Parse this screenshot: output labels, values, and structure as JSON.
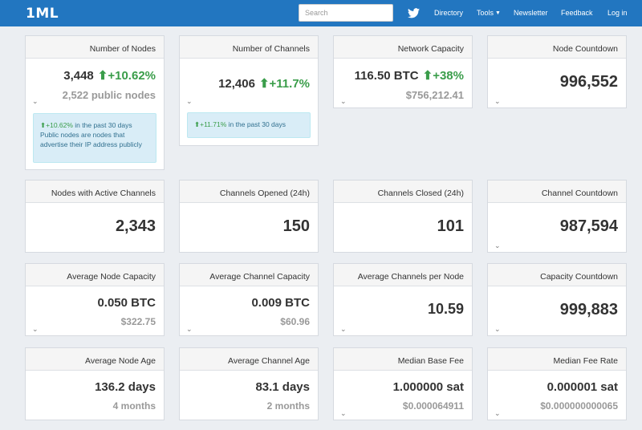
{
  "nav": {
    "logo": "1ML",
    "search_placeholder": "Search",
    "links": {
      "directory": "Directory",
      "tools": "Tools",
      "newsletter": "Newsletter",
      "feedback": "Feedback",
      "login": "Log in"
    }
  },
  "cards": {
    "nodes": {
      "title": "Number of Nodes",
      "value": "3,448",
      "change": "+10.62%",
      "sub": "2,522 public nodes",
      "info_pct": "+10.62%",
      "info_line1": " in the past 30 days",
      "info_line2": "Public nodes are nodes that",
      "info_line3": "advertise their IP address publicly"
    },
    "channels": {
      "title": "Number of Channels",
      "value": "12,406",
      "change": "+11.7%",
      "info_pct": "+11.71%",
      "info_line1": " in the past 30 days"
    },
    "capacity": {
      "title": "Network Capacity",
      "value": "116.50 BTC",
      "change": "+38%",
      "sub": "$756,212.41"
    },
    "node_countdown": {
      "title": "Node Countdown",
      "value": "996,552"
    },
    "active": {
      "title": "Nodes with Active Channels",
      "value": "2,343"
    },
    "opened": {
      "title": "Channels Opened (24h)",
      "value": "150"
    },
    "closed": {
      "title": "Channels Closed (24h)",
      "value": "101"
    },
    "channel_countdown": {
      "title": "Channel Countdown",
      "value": "987,594"
    },
    "avg_node_cap": {
      "title": "Average Node Capacity",
      "value": "0.050 BTC",
      "sub": "$322.75"
    },
    "avg_chan_cap": {
      "title": "Average Channel Capacity",
      "value": "0.009 BTC",
      "sub": "$60.96"
    },
    "avg_chan_per_node": {
      "title": "Average Channels per Node",
      "value": "10.59"
    },
    "capacity_countdown": {
      "title": "Capacity Countdown",
      "value": "999,883"
    },
    "avg_node_age": {
      "title": "Average Node Age",
      "value": "136.2 days",
      "sub": "4 months"
    },
    "avg_chan_age": {
      "title": "Average Channel Age",
      "value": "83.1 days",
      "sub": "2 months"
    },
    "median_base_fee": {
      "title": "Median Base Fee",
      "value": "1.000000 sat",
      "sub": "$0.000064911"
    },
    "median_fee_rate": {
      "title": "Median Fee Rate",
      "value": "0.000001 sat",
      "sub": "$0.000000000065"
    }
  },
  "icons": {
    "twitter": "twitter-icon",
    "arrow": "arrow-up-icon",
    "chevron": "chevron-down-icon"
  },
  "colors": {
    "navbar": "#2276c0",
    "positive": "#3a9d4a",
    "info_bg": "#d9edf7",
    "muted": "#999999"
  }
}
